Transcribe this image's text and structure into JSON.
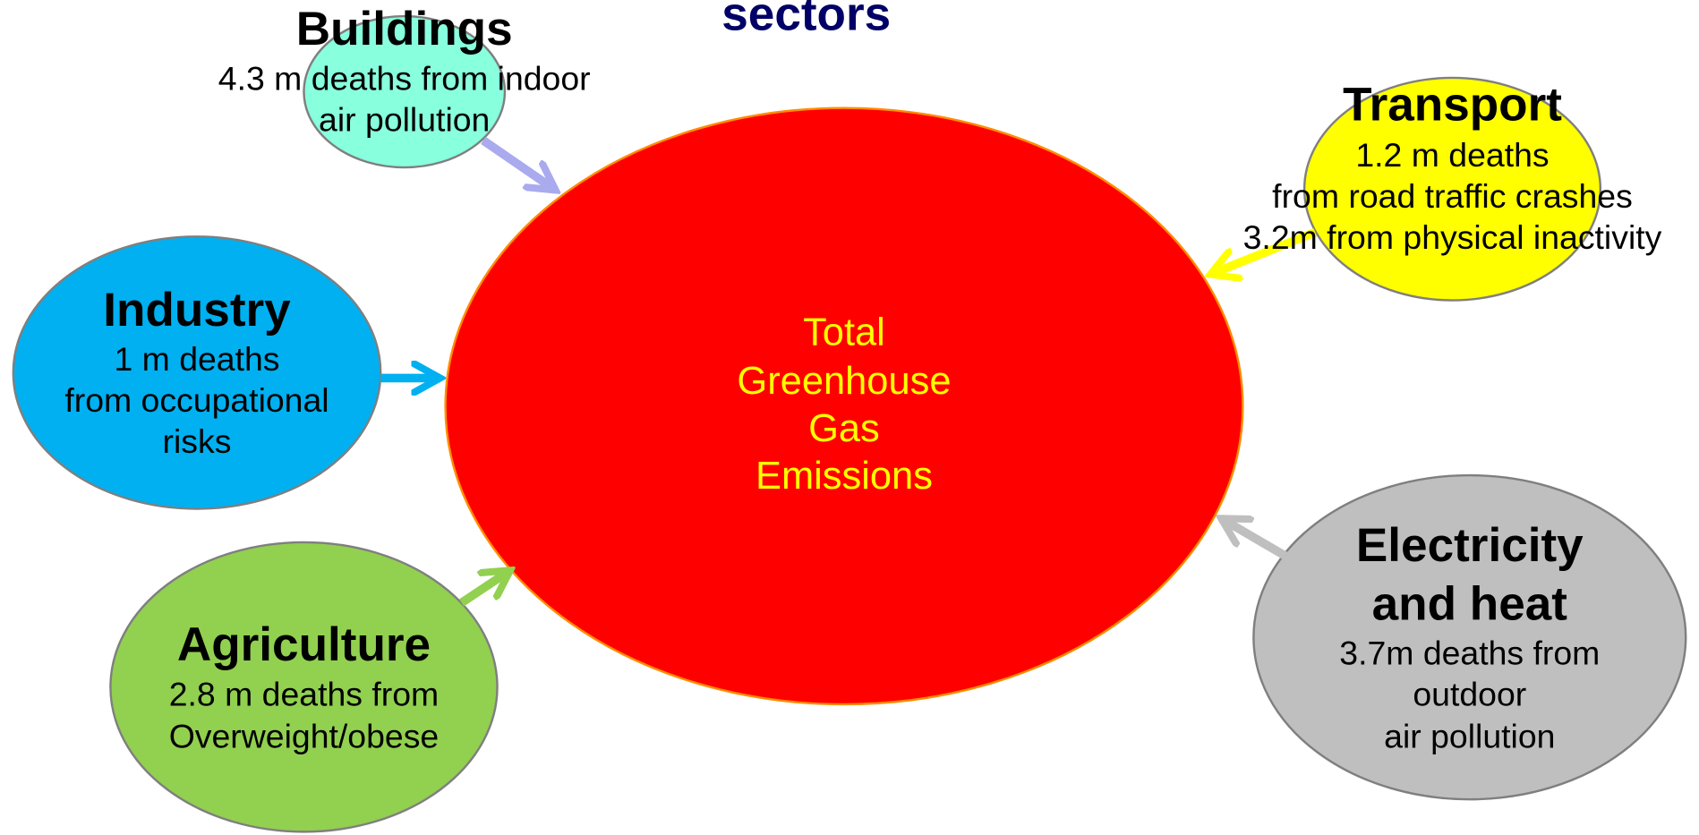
{
  "title": "sectors",
  "center": {
    "lines": [
      "Total",
      "Greenhouse",
      "Gas",
      "Emissions"
    ]
  },
  "nodes": [
    {
      "title": [
        "Buildings"
      ],
      "lines": [
        "4.3 m deaths from indoor",
        "air pollution"
      ]
    },
    {
      "title": [
        "Transport"
      ],
      "lines": [
        "1.2 m deaths",
        "from road traffic crashes",
        "3.2m from physical inactivity"
      ]
    },
    {
      "title": [
        "Industry"
      ],
      "lines": [
        "1 m deaths",
        "from occupational",
        "risks"
      ]
    },
    {
      "title": [
        "Agriculture"
      ],
      "lines": [
        "2.8 m deaths from",
        "Overweight/obese"
      ]
    },
    {
      "title": [
        "Electricity",
        "and heat"
      ],
      "lines": [
        "3.7m deaths from",
        "outdoor",
        "air pollution"
      ]
    }
  ]
}
